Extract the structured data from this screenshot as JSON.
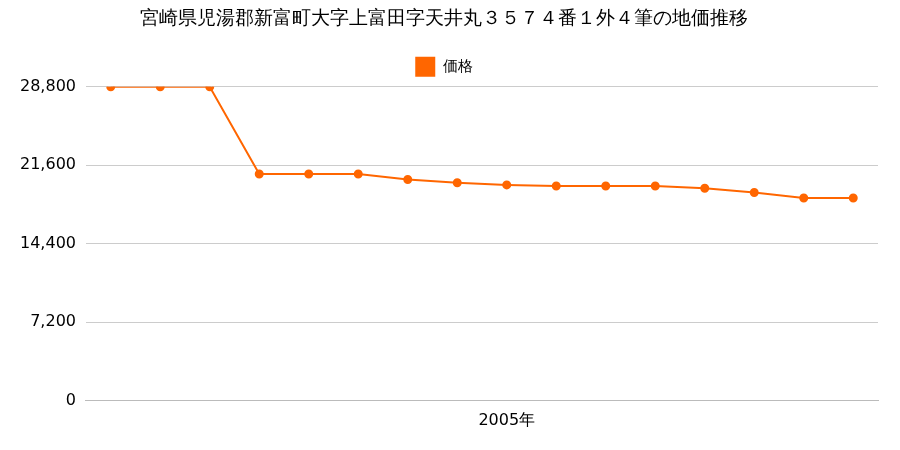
{
  "chart_data": {
    "type": "line",
    "title": "宮崎県児湯郡新富町大字上富田字天井丸３５７４番１外４筆の地価推移",
    "categories": [
      null,
      null,
      null,
      null,
      null,
      null,
      null,
      null,
      "2005年",
      null,
      null,
      null,
      null,
      null,
      null,
      null
    ],
    "series": [
      {
        "name": "価格",
        "color": "#ff6600",
        "marker": "circle",
        "line_style": "solid",
        "values": [
          28800,
          28800,
          28800,
          20800,
          20800,
          20800,
          20300,
          20000,
          19800,
          19700,
          19700,
          19700,
          19500,
          19100,
          18600,
          18600
        ]
      }
    ],
    "ylim": [
      0,
      28800
    ],
    "yticks": [
      0,
      {
        "value": 7200,
        "label": "7,200"
      },
      {
        "value": 14400,
        "label": "14,400"
      },
      {
        "value": 21600,
        "label": "21,600"
      },
      {
        "value": 28800,
        "label": "28,800"
      }
    ],
    "grid": true,
    "legend": "top"
  }
}
